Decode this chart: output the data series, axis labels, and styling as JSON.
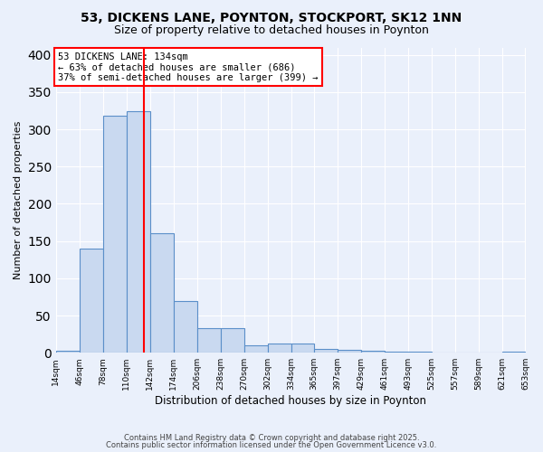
{
  "title_line1": "53, DICKENS LANE, POYNTON, STOCKPORT, SK12 1NN",
  "title_line2": "Size of property relative to detached houses in Poynton",
  "xlabel": "Distribution of detached houses by size in Poynton",
  "ylabel": "Number of detached properties",
  "bar_edges": [
    14,
    46,
    78,
    110,
    142,
    174,
    206,
    238,
    270,
    302,
    334,
    365,
    397,
    429,
    461,
    493,
    525,
    557,
    589,
    621,
    653
  ],
  "bar_heights": [
    3,
    140,
    318,
    325,
    160,
    70,
    33,
    33,
    10,
    13,
    13,
    5,
    4,
    3,
    1,
    1,
    0,
    0,
    0,
    2
  ],
  "bar_color": "#c9d9f0",
  "bar_edge_color": "#5b8fc9",
  "bar_linewidth": 0.8,
  "red_line_x": 134,
  "annotation_text": "53 DICKENS LANE: 134sqm\n← 63% of detached houses are smaller (686)\n37% of semi-detached houses are larger (399) →",
  "annotation_box_color": "white",
  "annotation_box_edge_color": "red",
  "ylim": [
    0,
    410
  ],
  "xlim": [
    14,
    653
  ],
  "tick_labels": [
    "14sqm",
    "46sqm",
    "78sqm",
    "110sqm",
    "142sqm",
    "174sqm",
    "206sqm",
    "238sqm",
    "270sqm",
    "302sqm",
    "334sqm",
    "365sqm",
    "397sqm",
    "429sqm",
    "461sqm",
    "493sqm",
    "525sqm",
    "557sqm",
    "589sqm",
    "621sqm",
    "653sqm"
  ],
  "tick_positions": [
    14,
    46,
    78,
    110,
    142,
    174,
    206,
    238,
    270,
    302,
    334,
    365,
    397,
    429,
    461,
    493,
    525,
    557,
    589,
    621,
    653
  ],
  "background_color": "#eaf0fb",
  "plot_bg_color": "#eaf0fb",
  "grid_color": "white",
  "footer_line1": "Contains HM Land Registry data © Crown copyright and database right 2025.",
  "footer_line2": "Contains public sector information licensed under the Open Government Licence v3.0."
}
